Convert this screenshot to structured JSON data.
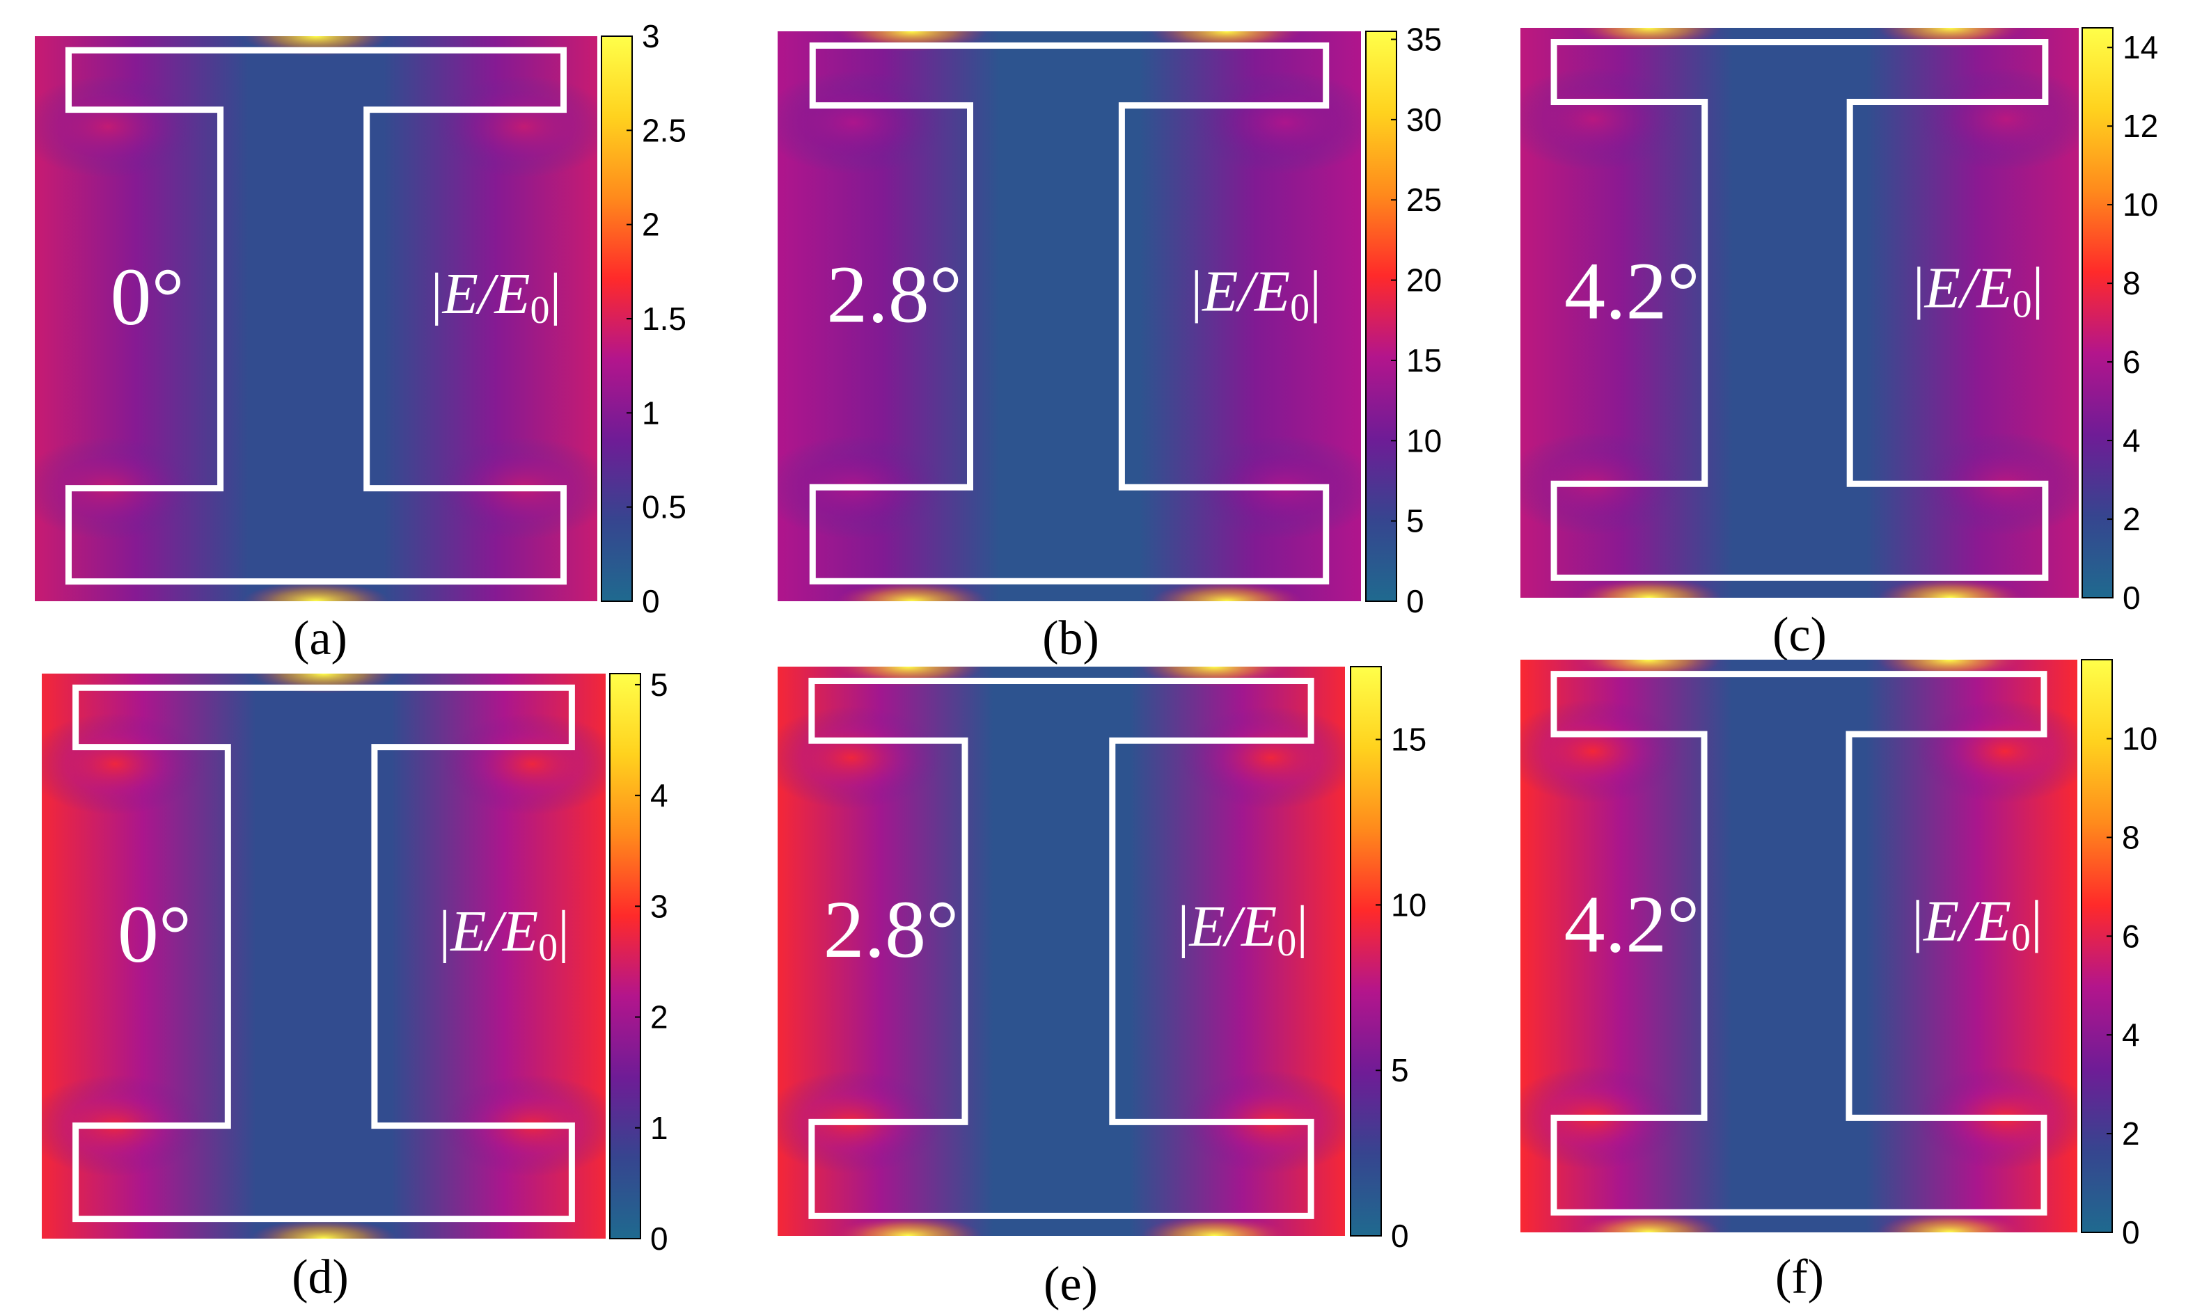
{
  "chart_data": [
    {
      "type": "heatmap",
      "panel_label": "(a)",
      "angle_label": "0°",
      "quantity_label": "|E/E0|",
      "colorbar": {
        "min": 0,
        "max": 3.0,
        "ticks": [
          0,
          0.5,
          1,
          1.5,
          2,
          2.5,
          3
        ],
        "tick_labels": [
          "0",
          "0.5",
          "1",
          "1.5",
          "2",
          "2.5",
          "3"
        ]
      },
      "field": {
        "background": 0.6,
        "side_max": 1.4,
        "hotspot_max": 3.0,
        "center_min": 0.35
      }
    },
    {
      "type": "heatmap",
      "panel_label": "(b)",
      "angle_label": "2.8°",
      "quantity_label": "|E/E0|",
      "colorbar": {
        "min": 0,
        "max": 35.5,
        "ticks": [
          0,
          5,
          10,
          15,
          20,
          25,
          30,
          35
        ],
        "tick_labels": [
          "0",
          "5",
          "10",
          "15",
          "20",
          "25",
          "30",
          "35"
        ]
      },
      "field": {
        "background": 8,
        "side_max": 15,
        "hotspot_max": 35,
        "center_min": 3
      }
    },
    {
      "type": "heatmap",
      "panel_label": "(c)",
      "angle_label": "4.2°",
      "quantity_label": "|E/E0|",
      "colorbar": {
        "min": 0,
        "max": 14.5,
        "ticks": [
          0,
          2,
          4,
          6,
          8,
          10,
          12,
          14
        ],
        "tick_labels": [
          "0",
          "2",
          "4",
          "6",
          "8",
          "10",
          "12",
          "14"
        ]
      },
      "field": {
        "background": 3.5,
        "side_max": 6.5,
        "hotspot_max": 14.5,
        "center_min": 1.5
      }
    },
    {
      "type": "heatmap",
      "panel_label": "(d)",
      "angle_label": "0°",
      "quantity_label": "|E/E0|",
      "colorbar": {
        "min": 0,
        "max": 5.1,
        "ticks": [
          0,
          1,
          2,
          3,
          4,
          5
        ],
        "tick_labels": [
          "0",
          "1",
          "2",
          "3",
          "4",
          "5"
        ]
      },
      "field": {
        "background": 1.4,
        "side_max": 2.8,
        "hotspot_max": 5.1,
        "center_min": 0.6
      }
    },
    {
      "type": "heatmap",
      "panel_label": "(e)",
      "angle_label": "2.8°",
      "quantity_label": "|E/E0|",
      "colorbar": {
        "min": 0,
        "max": 17.2,
        "ticks": [
          0,
          5,
          10,
          15
        ],
        "tick_labels": [
          "0",
          "5",
          "10",
          "15"
        ]
      },
      "field": {
        "background": 4,
        "side_max": 9.5,
        "hotspot_max": 17.2,
        "center_min": 1.5
      }
    },
    {
      "type": "heatmap",
      "panel_label": "(f)",
      "angle_label": "4.2°",
      "quantity_label": "|E/E0|",
      "colorbar": {
        "min": 0,
        "max": 11.6,
        "ticks": [
          0,
          2,
          4,
          6,
          8,
          10
        ],
        "tick_labels": [
          "0",
          "2",
          "4",
          "6",
          "8",
          "10"
        ]
      },
      "field": {
        "background": 3,
        "side_max": 6.5,
        "hotspot_max": 11.6,
        "center_min": 1.2
      }
    }
  ],
  "colormap": [
    "#1f6a8f",
    "#36458f",
    "#6f1c96",
    "#b3158c",
    "#ff2a2a",
    "#ff8a1c",
    "#ffd21e",
    "#ffff4a"
  ],
  "outline_color": "#ffffff"
}
